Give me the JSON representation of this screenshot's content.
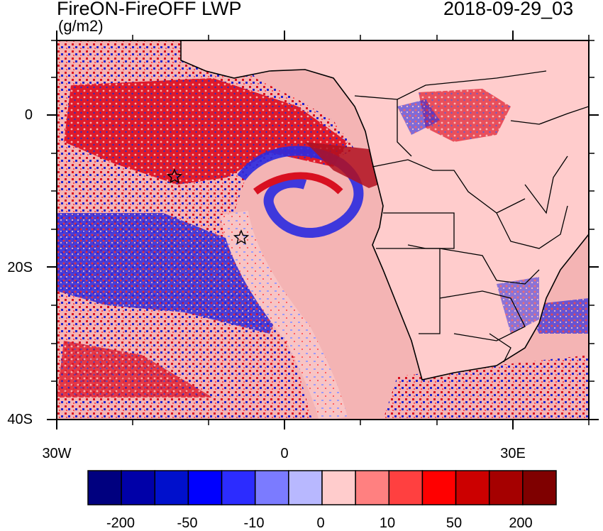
{
  "title": "FireON-FireOFF LWP",
  "timestamp": "2018-09-29_03",
  "units": "(g/m2)",
  "axes": {
    "lat_labels": [
      "0",
      "20S",
      "40S"
    ],
    "lon_labels": [
      "30W",
      "0",
      "30E"
    ]
  },
  "colorbar": {
    "colors": [
      "#00007f",
      "#0000a8",
      "#0010cc",
      "#0000ff",
      "#2c2cff",
      "#7b7bff",
      "#b8b8ff",
      "#ffcccc",
      "#ff8080",
      "#ff4040",
      "#ff0000",
      "#cc0000",
      "#a50000",
      "#7f0000"
    ],
    "labels": [
      "-200",
      "-50",
      "-10",
      "0",
      "10",
      "50",
      "200"
    ]
  },
  "colors": {
    "background_ocean": "#f4b4b4",
    "land": "#ffcccc",
    "positive": "#d81020",
    "negative": "#1a1ad8",
    "light_negative": "#b8b8ff"
  },
  "markers": [
    "star",
    "star"
  ]
}
